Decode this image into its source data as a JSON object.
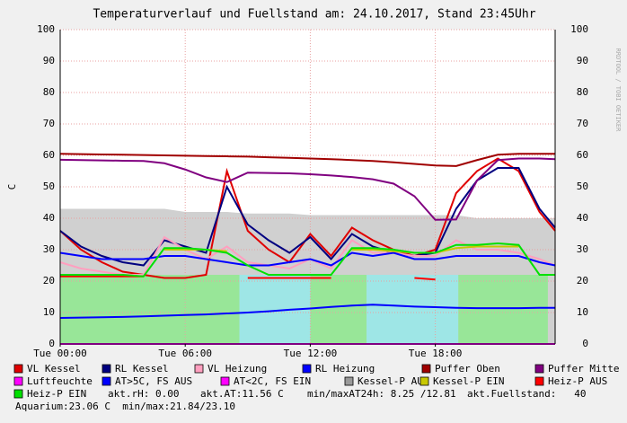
{
  "chart_data": {
    "type": "line",
    "title": "Temperaturverlauf und Fuellstand am: 24.10.2017, Stand 23:45Uhr",
    "side_text": "RRDTOOL / TOBI OETIKER",
    "y_label": "C",
    "x": [
      0,
      1,
      2,
      3,
      4,
      5,
      6,
      7,
      8,
      9,
      10,
      11,
      12,
      13,
      14,
      15,
      16,
      17,
      18,
      19,
      20,
      21,
      22,
      23,
      23.75
    ],
    "xlim": [
      0,
      23.75
    ],
    "xticks": [
      {
        "value": 0,
        "label": "Tue 00:00"
      },
      {
        "value": 6,
        "label": "Tue 06:00"
      },
      {
        "value": 12,
        "label": "Tue 12:00"
      },
      {
        "value": 18,
        "label": "Tue 18:00"
      }
    ],
    "ylim": [
      0,
      100
    ],
    "yticks": [
      0,
      10,
      20,
      30,
      40,
      50,
      60,
      70,
      80,
      90,
      100
    ],
    "y2lim": [
      0,
      100
    ],
    "y2ticks": [
      0,
      10,
      20,
      30,
      40,
      50,
      60,
      70,
      80,
      90,
      100
    ],
    "grid": true,
    "areas": [
      {
        "color": "#98e698",
        "segments": [
          [
            0,
            8.6,
            22
          ],
          [
            12,
            14.7,
            22
          ],
          [
            19.1,
            23.4,
            22
          ]
        ]
      },
      {
        "color": "#9ee6e6",
        "segments": [
          [
            8.6,
            12,
            22
          ],
          [
            14.7,
            19.1,
            22
          ]
        ]
      }
    ],
    "series": [
      {
        "name": "VL Kessel",
        "color": "#e00000",
        "values": [
          36,
          30,
          26,
          23,
          22,
          21,
          21,
          22,
          55,
          36,
          30,
          26,
          35,
          28,
          37,
          33,
          30,
          28,
          30,
          48,
          55,
          59,
          55,
          42,
          36
        ]
      },
      {
        "name": "RL Kessel",
        "color": "#000080",
        "values": [
          36,
          31,
          28,
          26,
          25,
          33,
          31,
          29,
          50,
          38,
          33,
          29,
          34,
          27,
          35,
          31,
          29,
          28,
          29,
          43,
          52,
          56,
          56,
          43,
          37
        ]
      },
      {
        "name": "VL Heizung",
        "color": "#ff9fbf",
        "values": [
          26,
          24,
          23,
          22,
          22,
          34,
          30,
          27,
          31,
          26,
          25,
          24,
          27,
          24,
          33,
          29,
          29,
          28,
          28,
          33,
          30,
          30,
          29,
          27,
          25
        ]
      },
      {
        "name": "RL Heizung",
        "color": "#0000ff",
        "values": [
          29,
          28,
          27,
          27,
          27,
          28,
          28,
          27,
          26,
          25,
          25,
          26,
          27,
          25,
          29,
          28,
          29,
          27,
          27,
          28,
          28,
          28,
          28,
          26,
          25
        ]
      },
      {
        "name": "Puffer Oben",
        "color": "#a00000",
        "values": [
          60.5,
          60.4,
          60.3,
          60.2,
          60.1,
          60,
          59.9,
          59.8,
          59.7,
          59.6,
          59.4,
          59.2,
          59,
          58.8,
          58.5,
          58.2,
          57.8,
          57.3,
          56.8,
          56.6,
          58.5,
          60.2,
          60.5,
          60.5,
          60.5
        ]
      },
      {
        "name": "Puffer Mitte",
        "color": "#800080",
        "values": [
          58.6,
          58.5,
          58.4,
          58.3,
          58.2,
          57.5,
          55.5,
          53,
          51.5,
          54.5,
          54.4,
          54.3,
          54,
          53.6,
          53.1,
          52.4,
          51,
          47,
          39.5,
          39.6,
          52,
          58.5,
          59,
          59,
          58.8
        ]
      },
      {
        "name": "Luftfeuchte",
        "color": "#ff00ff",
        "values": [
          0,
          0,
          0,
          0,
          0,
          0,
          0,
          0,
          0,
          0,
          0,
          0,
          0,
          0,
          0,
          0,
          0,
          0,
          0,
          0,
          0,
          0,
          0,
          0,
          0
        ]
      },
      {
        "name": "AT>5C, FS AUS",
        "color": "#0000ff",
        "values": [
          8.3,
          8.4,
          8.5,
          8.6,
          8.8,
          9,
          9.2,
          9.4,
          9.7,
          10,
          10.4,
          10.9,
          11.3,
          11.8,
          12.2,
          12.5,
          12.2,
          11.9,
          11.7,
          11.5,
          11.4,
          11.4,
          11.4,
          11.5,
          11.5
        ]
      },
      {
        "name": "AT<2C, FS EIN",
        "color": "#ff00ff",
        "values": [
          null,
          null,
          null,
          null,
          null,
          null,
          null,
          null,
          null,
          null,
          null,
          null,
          null,
          null,
          null,
          null,
          null,
          null,
          null,
          null,
          null,
          null,
          null,
          null,
          null
        ]
      },
      {
        "name": "Kessel-P AUS",
        "color": "#999999",
        "fill": true,
        "values": [
          43,
          43,
          43,
          43,
          43,
          43,
          42,
          42,
          42,
          41.5,
          41.5,
          41.5,
          41,
          41,
          41,
          41,
          41,
          41,
          41,
          41,
          40,
          40,
          40,
          40,
          40
        ]
      },
      {
        "name": "Kessel-P EIN",
        "color": "#c8c800",
        "values": [
          null,
          null,
          null,
          null,
          null,
          30,
          30,
          30,
          29.5,
          null,
          null,
          null,
          null,
          null,
          30,
          30,
          29.5,
          29,
          29,
          30.5,
          31,
          31,
          31,
          null,
          null
        ]
      },
      {
        "name": "Heiz-P AUS",
        "color": "#ff0000",
        "values": [
          21.5,
          21.5,
          21.5,
          21.5,
          21.5,
          null,
          null,
          null,
          null,
          21,
          21,
          21,
          21,
          21,
          null,
          null,
          null,
          21,
          20.5,
          null,
          null,
          null,
          null,
          null,
          null
        ]
      },
      {
        "name": "Heiz-P EIN",
        "color": "#00e000",
        "values": [
          22,
          22,
          22,
          22,
          21.5,
          30.5,
          30.5,
          30,
          29,
          25,
          22,
          22,
          22,
          22,
          30.5,
          30.5,
          30,
          29,
          29,
          31.5,
          31.5,
          32,
          31.5,
          22,
          22
        ]
      }
    ],
    "info": [
      "akt.rH: 0.00",
      "akt.AT:11.56 C",
      "min/maxAT24h: 8.25 /12.81",
      "akt.Fuellstand:   40",
      "Aquarium:23.06 C  min/max:21.84/23.10"
    ]
  }
}
